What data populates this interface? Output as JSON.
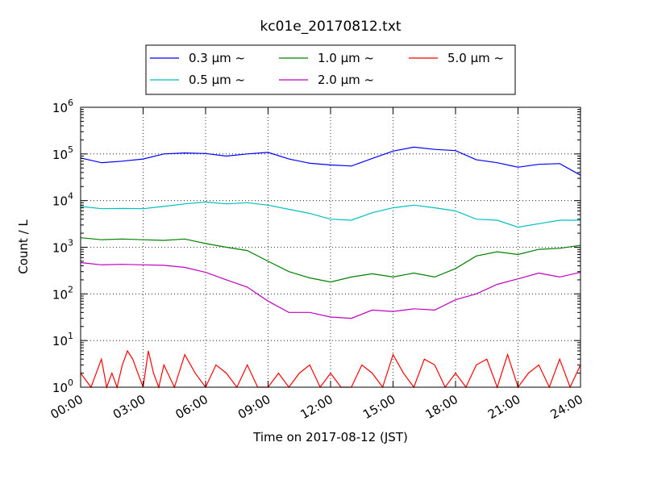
{
  "chart_data": {
    "type": "line",
    "title": "kc01e_20170812.txt",
    "xlabel": "Time on 2017-08-12 (JST)",
    "ylabel": "Count / L",
    "yscale": "log",
    "ylim": [
      1,
      1000000
    ],
    "xlim": [
      "00:00",
      "24:00"
    ],
    "grid": true,
    "legend_position": "top",
    "x_ticks": [
      "00:00",
      "03:00",
      "06:00",
      "09:00",
      "12:00",
      "15:00",
      "18:00",
      "21:00",
      "24:00"
    ],
    "y_ticks": [
      {
        "base": "10",
        "exp": "0"
      },
      {
        "base": "10",
        "exp": "1"
      },
      {
        "base": "10",
        "exp": "2"
      },
      {
        "base": "10",
        "exp": "3"
      },
      {
        "base": "10",
        "exp": "4"
      },
      {
        "base": "10",
        "exp": "5"
      },
      {
        "base": "10",
        "exp": "6"
      }
    ],
    "series": [
      {
        "name": "0.3 μm ~",
        "color": "#0000ff",
        "x": [
          "00:00",
          "01:00",
          "02:00",
          "03:00",
          "04:00",
          "05:00",
          "06:00",
          "07:00",
          "08:00",
          "09:00",
          "10:00",
          "11:00",
          "12:00",
          "13:00",
          "14:00",
          "15:00",
          "16:00",
          "17:00",
          "18:00",
          "19:00",
          "20:00",
          "21:00",
          "22:00",
          "23:00",
          "24:00"
        ],
        "values": [
          82000,
          65000,
          70000,
          78000,
          100000,
          105000,
          102000,
          90000,
          100000,
          108000,
          78000,
          63000,
          58000,
          55000,
          80000,
          115000,
          140000,
          125000,
          118000,
          75000,
          65000,
          52000,
          60000,
          62000,
          35000
        ]
      },
      {
        "name": "0.5 μm ~",
        "color": "#00bfbf",
        "x": [
          "00:00",
          "01:00",
          "02:00",
          "03:00",
          "04:00",
          "05:00",
          "06:00",
          "07:00",
          "08:00",
          "09:00",
          "10:00",
          "11:00",
          "12:00",
          "13:00",
          "14:00",
          "15:00",
          "16:00",
          "17:00",
          "18:00",
          "19:00",
          "20:00",
          "21:00",
          "22:00",
          "23:00",
          "24:00"
        ],
        "values": [
          7500,
          6700,
          6800,
          6700,
          7500,
          8500,
          9300,
          8500,
          9000,
          8000,
          6500,
          5300,
          4000,
          3800,
          5500,
          7000,
          8000,
          7000,
          6000,
          4000,
          3800,
          2700,
          3200,
          3800,
          3800
        ]
      },
      {
        "name": "1.0 μm ~",
        "color": "#008000",
        "x": [
          "00:00",
          "01:00",
          "02:00",
          "03:00",
          "04:00",
          "05:00",
          "06:00",
          "07:00",
          "08:00",
          "09:00",
          "10:00",
          "11:00",
          "12:00",
          "13:00",
          "14:00",
          "15:00",
          "16:00",
          "17:00",
          "18:00",
          "19:00",
          "20:00",
          "21:00",
          "22:00",
          "23:00",
          "24:00"
        ],
        "values": [
          1600,
          1450,
          1500,
          1450,
          1400,
          1500,
          1200,
          1000,
          850,
          500,
          300,
          220,
          180,
          230,
          270,
          230,
          280,
          230,
          350,
          650,
          800,
          700,
          900,
          950,
          1100
        ]
      },
      {
        "name": "2.0 μm ~",
        "color": "#bf00bf",
        "x": [
          "00:00",
          "01:00",
          "02:00",
          "03:00",
          "04:00",
          "05:00",
          "06:00",
          "07:00",
          "08:00",
          "09:00",
          "10:00",
          "11:00",
          "12:00",
          "13:00",
          "14:00",
          "15:00",
          "16:00",
          "17:00",
          "18:00",
          "19:00",
          "20:00",
          "21:00",
          "22:00",
          "23:00",
          "24:00"
        ],
        "values": [
          470,
          420,
          430,
          420,
          410,
          370,
          290,
          200,
          140,
          70,
          40,
          40,
          32,
          30,
          45,
          42,
          48,
          45,
          75,
          100,
          160,
          210,
          280,
          230,
          290
        ]
      },
      {
        "name": "5.0 μm ~",
        "color": "#ff0000",
        "x": [
          "00:00",
          "00:30",
          "01:00",
          "01:15",
          "01:30",
          "01:45",
          "02:00",
          "02:15",
          "02:30",
          "02:45",
          "03:00",
          "03:15",
          "03:30",
          "03:45",
          "04:00",
          "04:30",
          "05:00",
          "05:30",
          "06:00",
          "06:30",
          "07:00",
          "07:30",
          "08:00",
          "08:30",
          "09:00",
          "09:30",
          "10:00",
          "10:30",
          "11:00",
          "11:30",
          "12:00",
          "12:30",
          "13:00",
          "13:30",
          "14:00",
          "14:30",
          "15:00",
          "15:30",
          "16:00",
          "16:30",
          "17:00",
          "17:30",
          "18:00",
          "18:30",
          "19:00",
          "19:30",
          "20:00",
          "20:30",
          "21:00",
          "21:30",
          "22:00",
          "22:30",
          "23:00",
          "23:30",
          "24:00"
        ],
        "values": [
          2,
          1,
          4,
          1,
          2,
          1,
          3,
          6,
          4,
          2,
          1,
          6,
          2,
          1,
          3,
          1,
          5,
          2,
          1,
          3,
          2,
          1,
          3,
          1,
          1,
          2,
          1,
          2,
          3,
          1,
          2,
          1,
          1,
          3,
          2,
          1,
          5,
          2,
          1,
          4,
          3,
          1,
          2,
          1,
          3,
          4,
          1,
          5,
          1,
          2,
          3,
          1,
          4,
          1,
          3
        ]
      }
    ]
  }
}
